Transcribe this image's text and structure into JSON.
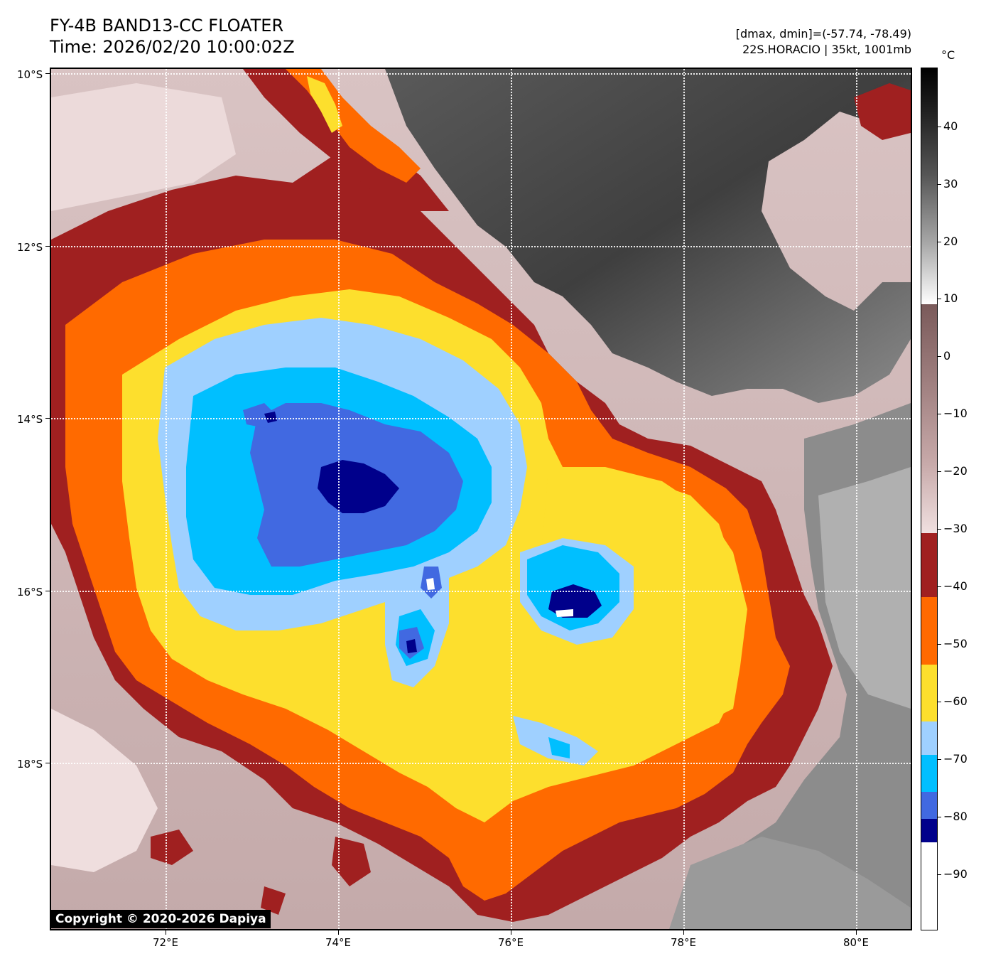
{
  "header": {
    "title_line1": "FY-4B BAND13-CC FLOATER",
    "title_line2": "Time: 2026/02/20 10:00:02Z",
    "dminmax": "[dmax, dmin]=(-57.74, -78.49)",
    "storm": "22S.HORACIO | 35kt, 1001mb"
  },
  "map": {
    "lat_labels": [
      "10°S",
      "12°S",
      "14°S",
      "16°S",
      "18°S"
    ],
    "lon_labels": [
      "72°E",
      "74°E",
      "76°E",
      "78°E",
      "80°E"
    ],
    "copyright": "Copyright © 2020-2026 Dapiya",
    "colors": {
      "background_warm": "#b89e9e",
      "clear_dark": "#4a4a4a",
      "clear_mid": "#7a7a7a",
      "pink": "#e6cfcf",
      "darkred": "#a02020",
      "orange": "#ff6a00",
      "yellow": "#fddf2d",
      "lightblue": "#9fd0ff",
      "cyan": "#00bfff",
      "royalblue": "#4169e1",
      "navy": "#00008b",
      "white": "#ffffff"
    }
  },
  "colorbar": {
    "unit": "°C",
    "labels": [
      "40",
      "30",
      "20",
      "10",
      "0",
      "−10",
      "−20",
      "−30",
      "−40",
      "−50",
      "−60",
      "−70",
      "−80",
      "−90"
    ],
    "segments": [
      {
        "color": "#ffffff"
      },
      {
        "color": "#00008b"
      },
      {
        "color": "#4169e1"
      },
      {
        "color": "#00bfff"
      },
      {
        "color": "#9fd0ff"
      },
      {
        "color": "#fddf2d"
      },
      {
        "color": "#ff6a00"
      },
      {
        "color": "#a02020"
      }
    ]
  }
}
